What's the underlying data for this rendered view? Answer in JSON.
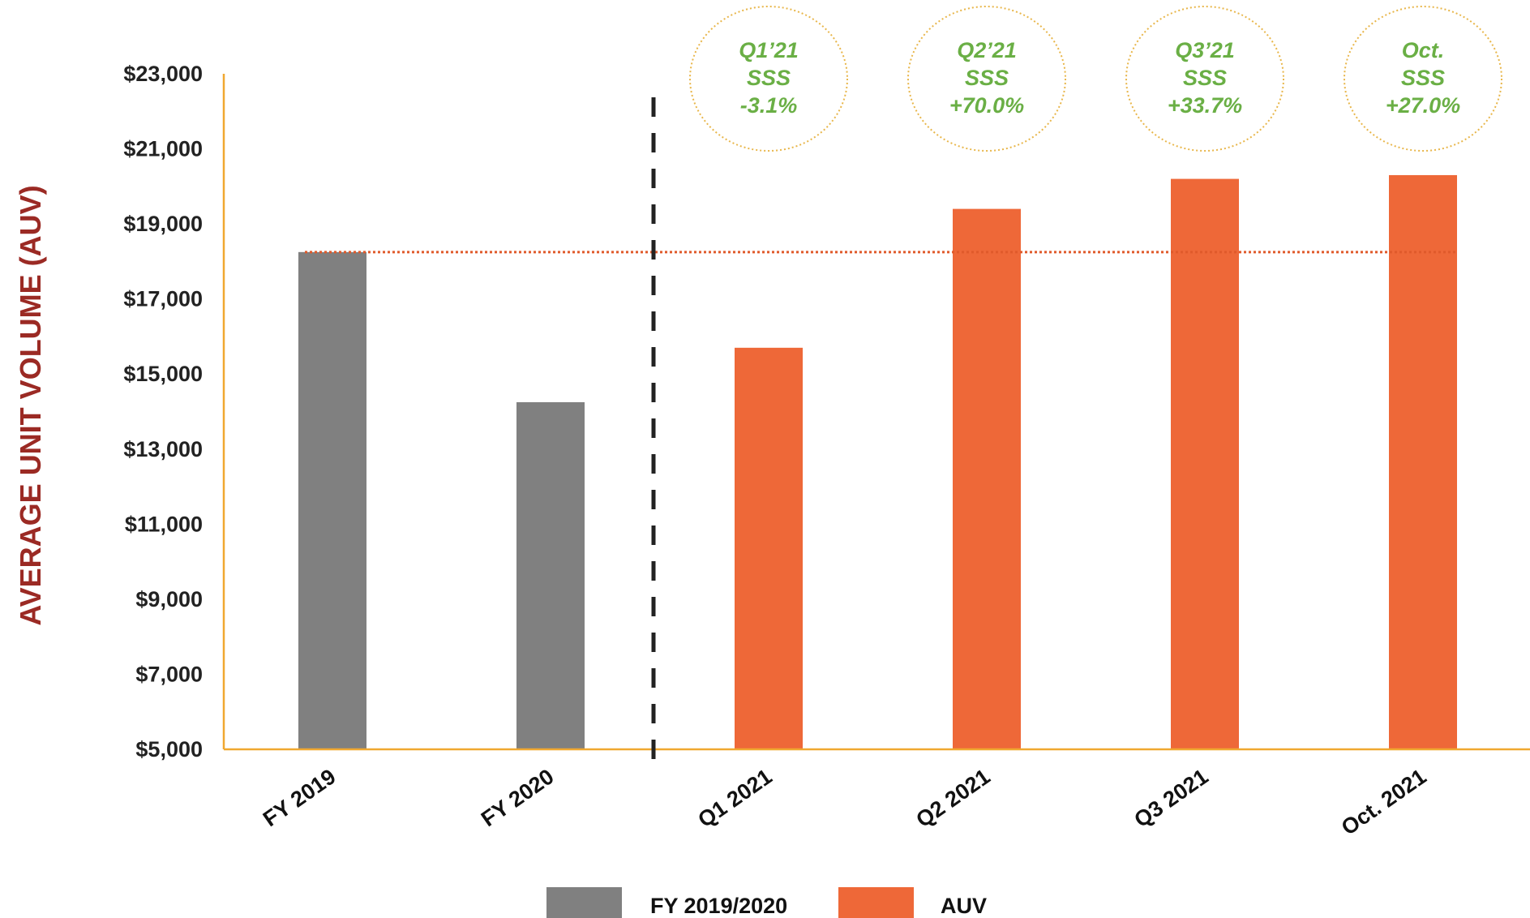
{
  "chart_data": {
    "type": "bar",
    "title": "",
    "xlabel": "",
    "ylabel": "AVERAGE UNIT VOLUME (AUV)",
    "ylim": [
      5000,
      23000
    ],
    "yticks": [
      5000,
      7000,
      9000,
      11000,
      13000,
      15000,
      17000,
      19000,
      21000,
      23000
    ],
    "ytick_labels": [
      "$5,000",
      "$7,000",
      "$9,000",
      "$11,000",
      "$13,000",
      "$15,000",
      "$17,000",
      "$19,000",
      "$21,000",
      "$23,000"
    ],
    "categories": [
      "FY 2019",
      "FY 2020",
      "Q1 2021",
      "Q2 2021",
      "Q3 2021",
      "Oct. 2021"
    ],
    "values": [
      18250,
      14250,
      15700,
      19400,
      20200,
      20300
    ],
    "bar_series": [
      "FY 2019/2020",
      "FY 2019/2020",
      "AUV",
      "AUV",
      "AUV",
      "AUV"
    ],
    "series": [
      {
        "name": "FY 2019/2020",
        "color": "#808080"
      },
      {
        "name": "AUV",
        "color": "#EE6838"
      }
    ],
    "reference_line": {
      "value": 18250,
      "style": "dotted",
      "color": "#E05A2B"
    },
    "separator": {
      "between": [
        "FY 2020",
        "Q1 2021"
      ],
      "style": "dashed",
      "color": "#222222"
    },
    "annotations": [
      {
        "category": "Q1 2021",
        "lines": [
          "Q1’21",
          "SSS",
          "-3.1%"
        ]
      },
      {
        "category": "Q2 2021",
        "lines": [
          "Q2’21",
          "SSS",
          "+70.0%"
        ]
      },
      {
        "category": "Q3 2021",
        "lines": [
          "Q3’21",
          "SSS",
          "+33.7%"
        ]
      },
      {
        "category": "Oct. 2021",
        "lines": [
          "Oct.",
          "SSS",
          "+27.0%"
        ]
      }
    ],
    "annotation_color": "#6AAF45",
    "annotation_border_color": "#E8B64A",
    "axis_color": "#F0A830",
    "ylabel_color": "#9B2A24",
    "grid": false,
    "legend_position": "bottom"
  }
}
